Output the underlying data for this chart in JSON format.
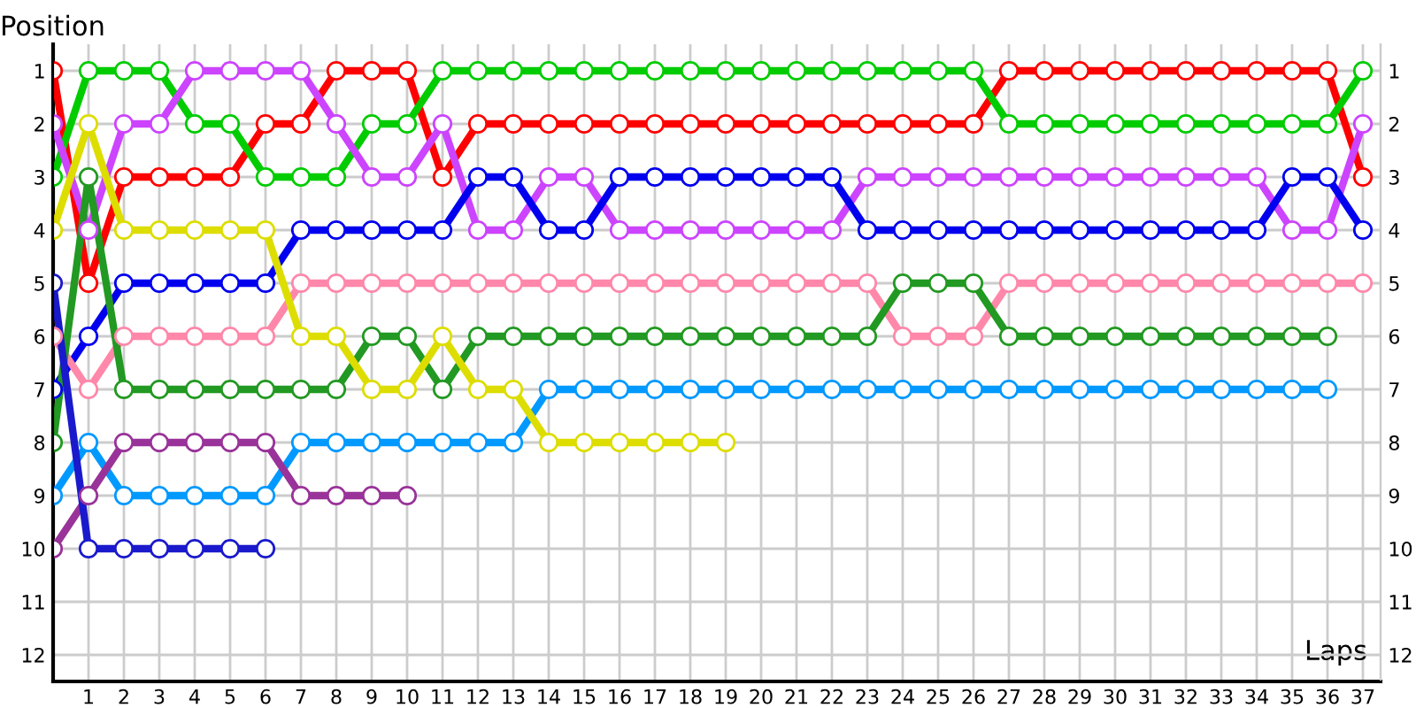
{
  "chart_data": {
    "type": "line",
    "xlabel": "Laps",
    "ylabel": "Position",
    "x": [
      0,
      1,
      2,
      3,
      4,
      5,
      6,
      7,
      8,
      9,
      10,
      11,
      12,
      13,
      14,
      15,
      16,
      17,
      18,
      19,
      20,
      21,
      22,
      23,
      24,
      25,
      26,
      27,
      28,
      29,
      30,
      31,
      32,
      33,
      34,
      35,
      36,
      37
    ],
    "xlim": [
      0,
      37.5
    ],
    "xticks": [
      1,
      2,
      3,
      4,
      5,
      6,
      7,
      8,
      9,
      10,
      11,
      12,
      13,
      14,
      15,
      16,
      17,
      18,
      19,
      20,
      21,
      22,
      23,
      24,
      25,
      26,
      27,
      28,
      29,
      30,
      31,
      32,
      33,
      34,
      35,
      36,
      37
    ],
    "ylim": [
      12.5,
      0.5
    ],
    "yticks": [
      1,
      2,
      3,
      4,
      5,
      6,
      7,
      8,
      9,
      10,
      11,
      12
    ],
    "y2lim": [
      12.5,
      0.5
    ],
    "y2ticks": [
      1,
      2,
      3,
      4,
      5,
      6,
      7,
      8,
      9,
      10,
      11,
      12
    ],
    "grid": true,
    "legend": false,
    "marker": "circle",
    "line_style": "solid",
    "series": [
      {
        "color": "#ff0000",
        "values": [
          1,
          5,
          3,
          3,
          3,
          3,
          2,
          2,
          1,
          1,
          1,
          3,
          2,
          2,
          2,
          2,
          2,
          2,
          2,
          2,
          2,
          2,
          2,
          2,
          2,
          2,
          2,
          1,
          1,
          1,
          1,
          1,
          1,
          1,
          1,
          1,
          1,
          3
        ]
      },
      {
        "color": "#00cc00",
        "values": [
          3,
          1,
          1,
          1,
          2,
          2,
          3,
          3,
          3,
          2,
          2,
          1,
          1,
          1,
          1,
          1,
          1,
          1,
          1,
          1,
          1,
          1,
          1,
          1,
          1,
          1,
          1,
          2,
          2,
          2,
          2,
          2,
          2,
          2,
          2,
          2,
          2,
          1
        ]
      },
      {
        "color": "#cc44ff",
        "values": [
          2,
          4,
          2,
          2,
          1,
          1,
          1,
          1,
          2,
          3,
          3,
          2,
          4,
          4,
          3,
          3,
          4,
          4,
          4,
          4,
          4,
          4,
          4,
          3,
          3,
          3,
          3,
          3,
          3,
          3,
          3,
          3,
          3,
          3,
          3,
          4,
          4,
          2
        ]
      },
      {
        "color": "#0000ee",
        "values": [
          7,
          6,
          5,
          5,
          5,
          5,
          5,
          4,
          4,
          4,
          4,
          4,
          3,
          3,
          4,
          4,
          3,
          3,
          3,
          3,
          3,
          3,
          3,
          4,
          4,
          4,
          4,
          4,
          4,
          4,
          4,
          4,
          4,
          4,
          4,
          3,
          3,
          4
        ]
      },
      {
        "color": "#ff88aa",
        "values": [
          6,
          7,
          6,
          6,
          6,
          6,
          6,
          5,
          5,
          5,
          5,
          5,
          5,
          5,
          5,
          5,
          5,
          5,
          5,
          5,
          5,
          5,
          5,
          5,
          6,
          6,
          6,
          5,
          5,
          5,
          5,
          5,
          5,
          5,
          5,
          5,
          5,
          5
        ]
      },
      {
        "color": "#229922",
        "values": [
          8,
          3,
          7,
          7,
          7,
          7,
          7,
          7,
          7,
          6,
          6,
          7,
          6,
          6,
          6,
          6,
          6,
          6,
          6,
          6,
          6,
          6,
          6,
          6,
          5,
          5,
          5,
          6,
          6,
          6,
          6,
          6,
          6,
          6,
          6,
          6,
          6,
          null
        ]
      },
      {
        "color": "#0099ff",
        "values": [
          9,
          8,
          9,
          9,
          9,
          9,
          9,
          8,
          8,
          8,
          8,
          8,
          8,
          8,
          7,
          7,
          7,
          7,
          7,
          7,
          7,
          7,
          7,
          7,
          7,
          7,
          7,
          7,
          7,
          7,
          7,
          7,
          7,
          7,
          7,
          7,
          7,
          null
        ]
      },
      {
        "color": "#dddd00",
        "values": [
          4,
          2,
          4,
          4,
          4,
          4,
          4,
          6,
          6,
          7,
          7,
          6,
          7,
          7,
          8,
          8,
          8,
          8,
          8,
          8,
          null,
          null,
          null,
          null,
          null,
          null,
          null,
          null,
          null,
          null,
          null,
          null,
          null,
          null,
          null,
          null,
          null,
          null
        ]
      },
      {
        "color": "#993399",
        "values": [
          10,
          9,
          8,
          8,
          8,
          8,
          8,
          9,
          9,
          9,
          9,
          null,
          null,
          null,
          null,
          null,
          null,
          null,
          null,
          null,
          null,
          null,
          null,
          null,
          null,
          null,
          null,
          null,
          null,
          null,
          null,
          null,
          null,
          null,
          null,
          null,
          null,
          null
        ]
      },
      {
        "color": "#1a1acc",
        "values": [
          5,
          10,
          10,
          10,
          10,
          10,
          10,
          null,
          null,
          null,
          null,
          null,
          null,
          null,
          null,
          null,
          null,
          null,
          null,
          null,
          null,
          null,
          null,
          null,
          null,
          null,
          null,
          null,
          null,
          null,
          null,
          null,
          null,
          null,
          null,
          null,
          null,
          null
        ]
      }
    ]
  }
}
